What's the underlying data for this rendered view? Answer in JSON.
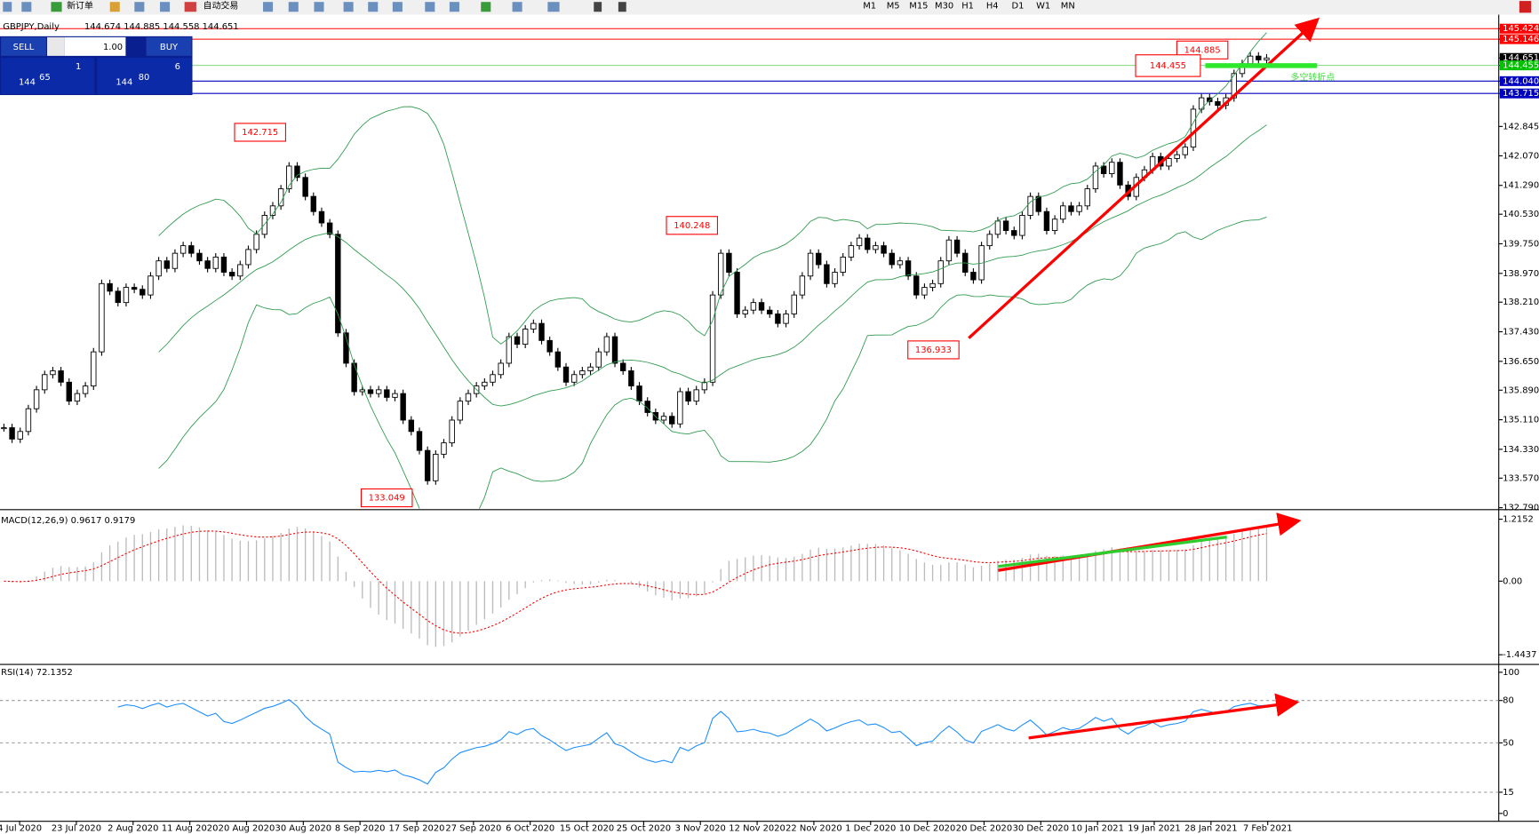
{
  "toolbar": {
    "new_order": "新订单",
    "auto_trading": "自动交易",
    "timeframes": [
      "M1",
      "M5",
      "M15",
      "M30",
      "H1",
      "H4",
      "D1",
      "W1",
      "MN"
    ]
  },
  "trade_panel": {
    "sell": "SELL",
    "buy": "BUY",
    "lots": "1.00",
    "bid": {
      "big": "144",
      "pips": "65",
      "point": "1"
    },
    "ask": {
      "big": "144",
      "pips": "80",
      "point": "6"
    }
  },
  "chart": {
    "title": "GBPJPY,Daily",
    "ohlc": "144.674 144.885 144.558 144.651",
    "close": [
      134.9,
      134.6,
      134.8,
      135.4,
      135.9,
      136.3,
      136.4,
      136.1,
      135.6,
      135.8,
      136.0,
      136.9,
      138.7,
      138.5,
      138.2,
      138.6,
      138.55,
      138.4,
      138.9,
      139.3,
      139.1,
      139.5,
      139.7,
      139.5,
      139.3,
      139.1,
      139.4,
      139.0,
      138.9,
      139.2,
      139.6,
      140.0,
      140.5,
      140.75,
      141.2,
      141.8,
      141.5,
      141.0,
      140.6,
      140.3,
      140.0,
      137.4,
      136.6,
      135.85,
      135.9,
      135.8,
      135.9,
      135.7,
      135.8,
      135.1,
      134.8,
      134.3,
      133.5,
      134.2,
      134.5,
      135.1,
      135.6,
      135.8,
      136.0,
      136.1,
      136.3,
      136.6,
      137.3,
      137.1,
      137.5,
      137.65,
      137.2,
      136.9,
      136.5,
      136.1,
      136.3,
      136.4,
      136.5,
      136.9,
      137.3,
      136.6,
      136.4,
      136.0,
      135.6,
      135.3,
      135.1,
      135.2,
      135.0,
      135.85,
      135.6,
      135.9,
      136.1,
      138.4,
      139.5,
      139.0,
      137.9,
      138.0,
      138.2,
      138.0,
      137.9,
      137.65,
      137.9,
      138.4,
      138.9,
      139.5,
      139.2,
      138.7,
      139.0,
      139.4,
      139.7,
      139.9,
      139.6,
      139.7,
      139.5,
      139.2,
      139.3,
      138.9,
      138.4,
      138.6,
      138.7,
      139.3,
      139.85,
      139.5,
      139.0,
      138.8,
      139.7,
      140.0,
      140.35,
      140.1,
      139.97,
      140.5,
      141.0,
      140.6,
      140.1,
      140.4,
      140.75,
      140.6,
      140.75,
      141.2,
      141.8,
      141.6,
      141.9,
      141.3,
      141.0,
      141.5,
      141.7,
      142.05,
      141.8,
      142.0,
      142.1,
      142.3,
      143.3,
      143.6,
      143.5,
      143.4,
      143.6,
      144.24,
      144.5,
      144.7,
      144.6,
      144.65
    ],
    "price_axis": [
      {
        "value": 145.424,
        "label": "145.424",
        "bg": "#ff0000",
        "line": "#ff0000"
      },
      {
        "value": 145.146,
        "label": "145.146",
        "bg": "#ff0000",
        "line": "#ff0000"
      },
      {
        "value": 144.651,
        "label": "144.651",
        "bg": "#000000"
      },
      {
        "value": 144.455,
        "label": "144.455",
        "bg": "#00c000",
        "line": "#7fd87f"
      },
      {
        "value": 144.04,
        "label": "144.040",
        "bg": "#0000c0",
        "line": "#0000c0"
      },
      {
        "value": 143.715,
        "label": "143.715",
        "bg": "#0000c0",
        "line": "#0000c0"
      },
      {
        "value": 142.845,
        "label": "142.845"
      },
      {
        "value": 142.07,
        "label": "142.070"
      },
      {
        "value": 141.29,
        "label": "141.290"
      },
      {
        "value": 140.53,
        "label": "140.530"
      },
      {
        "value": 139.75,
        "label": "139.750"
      },
      {
        "value": 138.97,
        "label": "138.970"
      },
      {
        "value": 138.21,
        "label": "138.210"
      },
      {
        "value": 137.43,
        "label": "137.430"
      },
      {
        "value": 136.65,
        "label": "136.650"
      },
      {
        "value": 135.89,
        "label": "135.890"
      },
      {
        "value": 135.11,
        "label": "135.110"
      },
      {
        "value": 134.33,
        "label": "134.330"
      },
      {
        "value": 133.57,
        "label": "133.570"
      },
      {
        "value": 132.79,
        "label": "132.790"
      }
    ],
    "annotations": [
      142.715,
      140.248,
      133.049,
      136.933,
      144.885,
      144.455
    ],
    "note": "多空转折点",
    "dates": [
      "4 Jul 2020",
      "23 Jul 2020",
      "2 Aug 2020",
      "11 Aug 2020",
      "20 Aug 2020",
      "30 Aug 2020",
      "8 Sep 2020",
      "17 Sep 2020",
      "27 Sep 2020",
      "6 Oct 2020",
      "15 Oct 2020",
      "25 Oct 2020",
      "3 Nov 2020",
      "12 Nov 2020",
      "22 Nov 2020",
      "1 Dec 2020",
      "10 Dec 2020",
      "20 Dec 2020",
      "30 Dec 2020",
      "10 Jan 2021",
      "19 Jan 2021",
      "28 Jan 2021",
      "7 Feb 2021"
    ]
  },
  "macd": {
    "label": "MACD(12,26,9) 0.9617 0.9179",
    "axis": [
      {
        "value": 1.2152,
        "label": "1.2152"
      },
      {
        "value": 0,
        "label": "0.00"
      },
      {
        "value": -1.4437,
        "label": "-1.4437"
      }
    ]
  },
  "rsi": {
    "label": "RSI(14) 72.1352",
    "axis": [
      100,
      80,
      50,
      15,
      0
    ]
  }
}
